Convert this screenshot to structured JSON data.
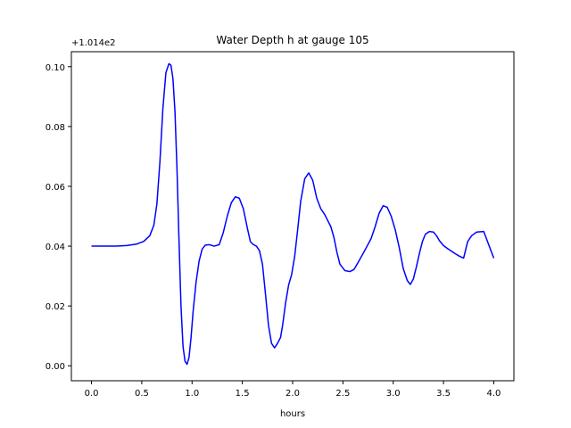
{
  "chart_data": {
    "type": "line",
    "title": "Water Depth h at gauge 105",
    "xlabel": "hours",
    "ylabel": "",
    "y_offset_label": "+1.014e2",
    "xlim": [
      -0.2,
      4.2
    ],
    "ylim": [
      -0.005,
      0.105
    ],
    "x_ticks": [
      0.0,
      0.5,
      1.0,
      1.5,
      2.0,
      2.5,
      3.0,
      3.5,
      4.0
    ],
    "x_tick_labels": [
      "0.0",
      "0.5",
      "1.0",
      "1.5",
      "2.0",
      "2.5",
      "3.0",
      "3.5",
      "4.0"
    ],
    "y_ticks": [
      0.0,
      0.02,
      0.04,
      0.06,
      0.08,
      0.1
    ],
    "y_tick_labels": [
      "0.00",
      "0.02",
      "0.04",
      "0.06",
      "0.08",
      "0.10"
    ],
    "grid": false,
    "series": [
      {
        "color": "#0000ff",
        "x": [
          0.0,
          0.15,
          0.25,
          0.35,
          0.45,
          0.52,
          0.58,
          0.62,
          0.65,
          0.68,
          0.71,
          0.74,
          0.77,
          0.79,
          0.81,
          0.83,
          0.85,
          0.87,
          0.89,
          0.91,
          0.93,
          0.95,
          0.97,
          0.99,
          1.01,
          1.04,
          1.07,
          1.1,
          1.13,
          1.17,
          1.22,
          1.27,
          1.31,
          1.35,
          1.39,
          1.43,
          1.47,
          1.51,
          1.55,
          1.58,
          1.61,
          1.64,
          1.67,
          1.7,
          1.73,
          1.76,
          1.79,
          1.82,
          1.85,
          1.88,
          1.9,
          1.93,
          1.96,
          1.99,
          2.02,
          2.05,
          2.08,
          2.12,
          2.16,
          2.2,
          2.24,
          2.28,
          2.32,
          2.35,
          2.38,
          2.41,
          2.44,
          2.47,
          2.52,
          2.57,
          2.61,
          2.65,
          2.7,
          2.74,
          2.78,
          2.82,
          2.86,
          2.9,
          2.94,
          2.98,
          3.02,
          3.06,
          3.1,
          3.14,
          3.17,
          3.2,
          3.23,
          3.26,
          3.29,
          3.32,
          3.36,
          3.4,
          3.43,
          3.46,
          3.5,
          3.54,
          3.58,
          3.62,
          3.66,
          3.7,
          3.74,
          3.78,
          3.83,
          3.9,
          4.0
        ],
        "y": [
          0.04,
          0.04,
          0.04,
          0.0402,
          0.0407,
          0.0416,
          0.0435,
          0.047,
          0.054,
          0.068,
          0.086,
          0.098,
          0.101,
          0.1005,
          0.096,
          0.085,
          0.066,
          0.042,
          0.02,
          0.0065,
          0.0015,
          0.0005,
          0.0028,
          0.0095,
          0.018,
          0.028,
          0.035,
          0.039,
          0.0403,
          0.0405,
          0.04,
          0.0405,
          0.0445,
          0.05,
          0.0545,
          0.0565,
          0.056,
          0.0525,
          0.046,
          0.0415,
          0.0405,
          0.04,
          0.0385,
          0.034,
          0.024,
          0.0135,
          0.0075,
          0.006,
          0.0075,
          0.0095,
          0.0135,
          0.021,
          0.027,
          0.0305,
          0.0365,
          0.0455,
          0.055,
          0.0625,
          0.0645,
          0.062,
          0.056,
          0.0525,
          0.0505,
          0.0485,
          0.0465,
          0.043,
          0.038,
          0.034,
          0.0318,
          0.0315,
          0.0322,
          0.0345,
          0.0375,
          0.04,
          0.0425,
          0.0465,
          0.051,
          0.0535,
          0.053,
          0.05,
          0.0455,
          0.0395,
          0.0325,
          0.0285,
          0.0272,
          0.029,
          0.033,
          0.0375,
          0.0415,
          0.044,
          0.0449,
          0.0447,
          0.0435,
          0.0418,
          0.0402,
          0.0392,
          0.0383,
          0.0374,
          0.0366,
          0.036,
          0.0415,
          0.0435,
          0.0447,
          0.0449,
          0.036
        ]
      }
    ]
  }
}
